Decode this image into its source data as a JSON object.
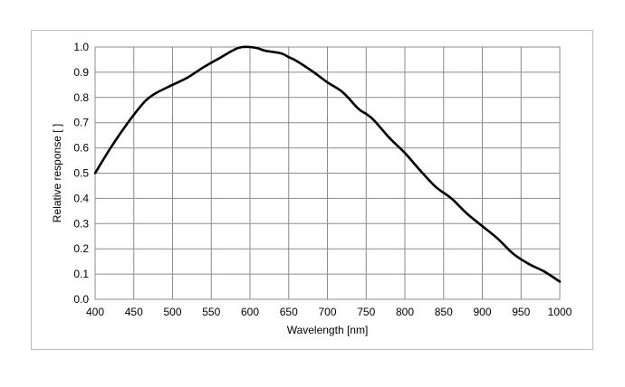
{
  "chart_data": {
    "type": "line",
    "title": "",
    "xlabel": "Wavelength [nm]",
    "ylabel": "Relative response [ ]",
    "xlim": [
      400,
      1000
    ],
    "ylim": [
      0.0,
      1.0
    ],
    "x_ticks": [
      "400",
      "450",
      "500",
      "550",
      "600",
      "650",
      "700",
      "750",
      "800",
      "850",
      "900",
      "950",
      "1000"
    ],
    "y_ticks": [
      "0.0",
      "0.1",
      "0.2",
      "0.3",
      "0.4",
      "0.5",
      "0.6",
      "0.7",
      "0.8",
      "0.9",
      "1.0"
    ],
    "grid": true,
    "legend": "none",
    "line_color": "#000000",
    "grid_color": "#8c8c8c",
    "series": [
      {
        "x": [
          400,
          420,
          440,
          460,
          470,
          480,
          500,
          520,
          540,
          560,
          580,
          590,
          600,
          610,
          620,
          640,
          650,
          660,
          680,
          700,
          720,
          740,
          750,
          760,
          780,
          800,
          820,
          840,
          860,
          880,
          900,
          920,
          940,
          960,
          980,
          1000
        ],
        "y": [
          0.5,
          0.6,
          0.69,
          0.77,
          0.8,
          0.82,
          0.85,
          0.88,
          0.92,
          0.955,
          0.99,
          1.0,
          1.0,
          0.995,
          0.985,
          0.975,
          0.96,
          0.945,
          0.905,
          0.86,
          0.82,
          0.755,
          0.735,
          0.71,
          0.64,
          0.58,
          0.51,
          0.445,
          0.4,
          0.34,
          0.29,
          0.24,
          0.18,
          0.14,
          0.11,
          0.07
        ]
      }
    ]
  }
}
